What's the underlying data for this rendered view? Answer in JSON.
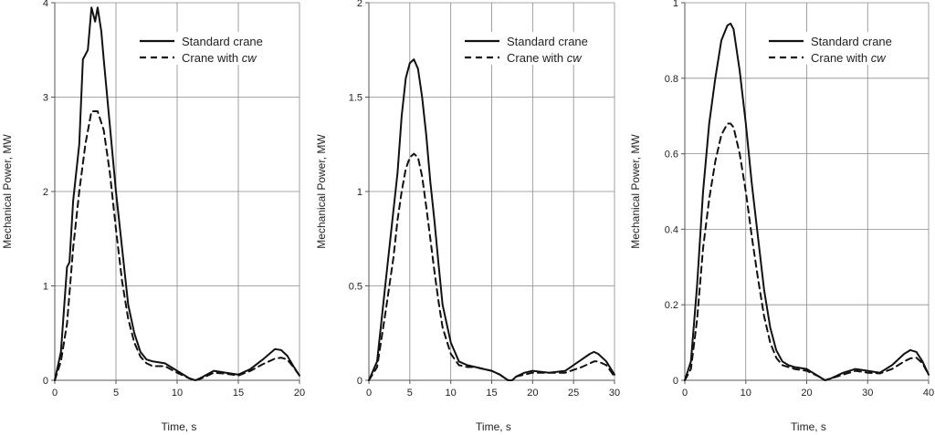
{
  "chart_data": [
    {
      "type": "line",
      "xlabel": "Time, s",
      "ylabel": "Mechanical Power, MW",
      "xlim": [
        0,
        20
      ],
      "ylim": [
        0,
        4
      ],
      "xticks": [
        0,
        5,
        10,
        15,
        20
      ],
      "yticks": [
        0,
        1,
        2,
        3,
        4
      ],
      "grid": true,
      "legend": "top-right",
      "series": [
        {
          "name": "Standard crane",
          "style": "solid",
          "x": [
            0,
            0.5,
            1,
            1.2,
            1.5,
            2,
            2.3,
            2.7,
            3,
            3.3,
            3.5,
            3.8,
            4,
            4.5,
            5,
            5.5,
            6,
            6.5,
            7,
            7.5,
            8,
            9,
            10,
            11,
            11.5,
            12,
            13,
            14,
            15,
            16,
            17,
            18,
            18.5,
            19,
            19.5,
            20
          ],
          "y": [
            0,
            0.3,
            1.2,
            1.25,
            1.9,
            2.5,
            3.4,
            3.5,
            3.95,
            3.8,
            3.95,
            3.7,
            3.4,
            2.7,
            2.0,
            1.4,
            0.8,
            0.5,
            0.3,
            0.22,
            0.2,
            0.18,
            0.1,
            0.02,
            0.0,
            0.03,
            0.1,
            0.08,
            0.06,
            0.12,
            0.22,
            0.33,
            0.32,
            0.26,
            0.15,
            0.05
          ]
        },
        {
          "name": "Crane with cw",
          "style": "dashed",
          "x": [
            0,
            0.5,
            1,
            1.5,
            2,
            2.5,
            3,
            3.5,
            4,
            4.5,
            5,
            5.5,
            6,
            6.5,
            7,
            7.5,
            8,
            9,
            10,
            11,
            11.5,
            12,
            13,
            14,
            15,
            16,
            17,
            18,
            18.5,
            19,
            19.5,
            20
          ],
          "y": [
            0,
            0.2,
            0.6,
            1.4,
            2.0,
            2.5,
            2.85,
            2.85,
            2.65,
            2.2,
            1.6,
            1.05,
            0.65,
            0.4,
            0.25,
            0.18,
            0.15,
            0.15,
            0.08,
            0.02,
            0.0,
            0.02,
            0.08,
            0.07,
            0.05,
            0.1,
            0.17,
            0.23,
            0.24,
            0.22,
            0.14,
            0.05
          ]
        }
      ]
    },
    {
      "type": "line",
      "xlabel": "Time, s",
      "ylabel": "Mechanical Power, MW",
      "xlim": [
        0,
        30
      ],
      "ylim": [
        0,
        2
      ],
      "xticks": [
        0,
        5,
        10,
        15,
        20,
        25,
        30
      ],
      "yticks": [
        0,
        0.5,
        1,
        1.5,
        2
      ],
      "grid": true,
      "legend": "top-right",
      "series": [
        {
          "name": "Standard crane",
          "style": "solid",
          "x": [
            0,
            1,
            2,
            3,
            3.5,
            4,
            4.5,
            5,
            5.5,
            6,
            6.5,
            7,
            7.5,
            8,
            8.5,
            9,
            10,
            11,
            12,
            13,
            14,
            15,
            16,
            17,
            17.5,
            18,
            19,
            20,
            22,
            24,
            26,
            27,
            27.5,
            28,
            29,
            30
          ],
          "y": [
            0,
            0.1,
            0.5,
            0.9,
            1.1,
            1.4,
            1.6,
            1.68,
            1.7,
            1.65,
            1.5,
            1.3,
            1.05,
            0.85,
            0.62,
            0.4,
            0.2,
            0.1,
            0.08,
            0.07,
            0.06,
            0.05,
            0.03,
            0.0,
            0.0,
            0.02,
            0.04,
            0.05,
            0.04,
            0.05,
            0.11,
            0.14,
            0.15,
            0.14,
            0.1,
            0.03
          ]
        },
        {
          "name": "Crane with cw",
          "style": "dashed",
          "x": [
            0,
            1,
            2,
            3,
            3.5,
            4,
            4.5,
            5,
            5.5,
            6,
            6.5,
            7,
            7.5,
            8,
            8.5,
            9,
            10,
            11,
            12,
            13,
            14,
            15,
            16,
            17,
            17.5,
            18,
            19,
            20,
            22,
            24,
            26,
            27,
            27.5,
            28,
            29,
            30
          ],
          "y": [
            0,
            0.07,
            0.35,
            0.65,
            0.85,
            1.0,
            1.12,
            1.18,
            1.2,
            1.18,
            1.08,
            0.92,
            0.75,
            0.58,
            0.42,
            0.28,
            0.14,
            0.08,
            0.07,
            0.07,
            0.06,
            0.05,
            0.03,
            0.0,
            0.0,
            0.02,
            0.03,
            0.04,
            0.04,
            0.04,
            0.07,
            0.09,
            0.1,
            0.1,
            0.08,
            0.02
          ]
        }
      ]
    },
    {
      "type": "line",
      "xlabel": "Time, s",
      "ylabel": "Mechanical Power, MW",
      "xlim": [
        0,
        40
      ],
      "ylim": [
        0,
        1
      ],
      "xticks": [
        0,
        10,
        20,
        30,
        40
      ],
      "yticks": [
        0,
        0.2,
        0.4,
        0.6,
        0.8,
        1
      ],
      "grid": true,
      "legend": "top-right",
      "series": [
        {
          "name": "Standard crane",
          "style": "solid",
          "x": [
            0,
            1,
            2,
            3,
            4,
            5,
            6,
            7,
            7.5,
            8,
            9,
            10,
            11,
            12,
            13,
            14,
            15,
            16,
            17,
            18,
            20,
            22,
            23,
            24,
            26,
            28,
            30,
            32,
            34,
            36,
            37,
            38,
            39,
            40
          ],
          "y": [
            0,
            0.05,
            0.25,
            0.5,
            0.68,
            0.8,
            0.9,
            0.94,
            0.945,
            0.93,
            0.82,
            0.68,
            0.52,
            0.38,
            0.24,
            0.14,
            0.08,
            0.05,
            0.04,
            0.035,
            0.03,
            0.01,
            0.0,
            0.005,
            0.02,
            0.03,
            0.025,
            0.02,
            0.04,
            0.07,
            0.08,
            0.075,
            0.05,
            0.015
          ]
        },
        {
          "name": "Crane with cw",
          "style": "dashed",
          "x": [
            0,
            1,
            2,
            3,
            4,
            5,
            6,
            7,
            7.5,
            8,
            9,
            10,
            11,
            12,
            13,
            14,
            15,
            16,
            17,
            18,
            20,
            22,
            23,
            24,
            26,
            28,
            30,
            32,
            34,
            36,
            37,
            38,
            39,
            40
          ],
          "y": [
            0,
            0.03,
            0.16,
            0.35,
            0.48,
            0.58,
            0.65,
            0.68,
            0.68,
            0.67,
            0.6,
            0.5,
            0.38,
            0.27,
            0.17,
            0.1,
            0.06,
            0.04,
            0.035,
            0.03,
            0.025,
            0.01,
            0.0,
            0.005,
            0.015,
            0.025,
            0.02,
            0.018,
            0.03,
            0.05,
            0.058,
            0.06,
            0.045,
            0.015
          ]
        }
      ]
    }
  ],
  "legend_labels": {
    "standard": "Standard crane",
    "cw_prefix": "Crane with ",
    "cw_italic": "cw"
  }
}
